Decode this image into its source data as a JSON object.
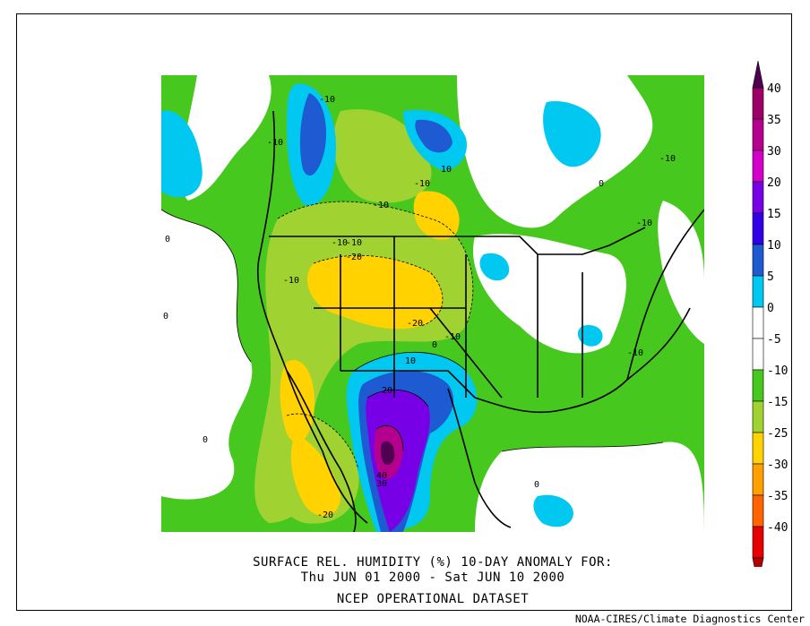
{
  "title": {
    "line1": "SURFACE REL. HUMIDITY (%)   10-DAY ANOMALY FOR:",
    "line2": "Thu JUN 01 2000 - Sat JUN 10 2000",
    "line3": "NCEP OPERATIONAL DATASET"
  },
  "credit": "NOAA-CIRES/Climate Diagnostics Center",
  "legend": {
    "ticks": [
      "40",
      "35",
      "30",
      "20",
      "15",
      "10",
      "5",
      "0",
      "-5",
      "-10",
      "-15",
      "-25",
      "-30",
      "-35",
      "-40"
    ],
    "colors": [
      "#9c0066",
      "#b4008c",
      "#d200c8",
      "#7800e6",
      "#3200e6",
      "#1e5ad2",
      "#00c8f0",
      "#ffffff",
      "#ffffff",
      "#46c81e",
      "#a0d232",
      "#ffd200",
      "#ffa000",
      "#ff6400",
      "#e60000"
    ],
    "top_color": "#500050",
    "bottom_color": "#b40000"
  },
  "contour_labels": [
    "-10",
    "-10",
    "-10",
    "10",
    "-10",
    "-10",
    "-10",
    "-10",
    "-20",
    "-10",
    "-10",
    "-20",
    "-10",
    "-10",
    "10",
    "20",
    "40",
    "30",
    "-20",
    "0",
    "0",
    "0",
    "0",
    "0",
    "0"
  ],
  "colors": {
    "ocean_neutral": "#ffffff",
    "green": "#46c81e",
    "yellow_green": "#a0d232",
    "yellow": "#ffd200",
    "cyan": "#00c8f0",
    "blue": "#1e5ad2",
    "purple": "#7800e6",
    "magenta": "#b4008c"
  }
}
